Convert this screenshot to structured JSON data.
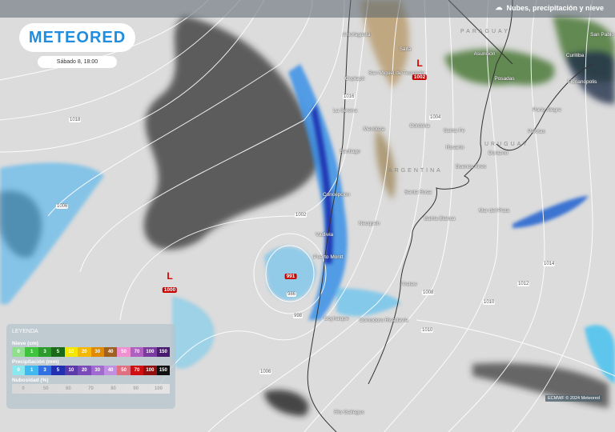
{
  "header": {
    "layer_label": "Nubes, precipitación y nieve",
    "layer_icon": "cloud-icon"
  },
  "brand": {
    "logo_text": "METEORED",
    "date": "Sábado 8, 18:00"
  },
  "countries": [
    "PARAGUAY",
    "URUGUAY",
    "ARGENTINA"
  ],
  "cities": [
    "Antofagasta",
    "Salta",
    "San Miguel de Tucumán",
    "Copiapó",
    "Asunción",
    "Posadas",
    "San Pablo",
    "Curitiba",
    "Florianópolis",
    "La Serena",
    "Córdoba",
    "Santa Fe",
    "Rosario",
    "Porto Alegre",
    "Pelotas",
    "Durazno",
    "Mendoza",
    "Santiago",
    "Buenos Aires",
    "Concepción",
    "Santa Rosa",
    "Neuquén",
    "Bahía Blanca",
    "Mar del Plata",
    "Valdivia",
    "Puerto Montt",
    "Trelew",
    "Coyhaique",
    "Comodoro Rivadavia",
    "Río Gallegos"
  ],
  "lows": [
    {
      "label": "L",
      "pressure": "1002"
    },
    {
      "label": "L",
      "pressure": "1000"
    },
    {
      "label": "",
      "pressure": "991"
    }
  ],
  "isobar_labels": [
    "1018",
    "1016",
    "1006",
    "1004",
    "1002",
    "1008",
    "1010",
    "1012",
    "1014",
    "986",
    "998",
    "1006",
    "1010"
  ],
  "legend": {
    "title": "LEYENDA",
    "snow": {
      "label": "Nieve (cm)",
      "ticks": [
        "0",
        "1",
        "3",
        "5",
        "10",
        "20",
        "30",
        "40",
        "50",
        "70",
        "100",
        "150"
      ],
      "colors": [
        "#8fe08a",
        "#3dc43a",
        "#2a9c2a",
        "#1a6a1a",
        "#f5e600",
        "#f5b800",
        "#e08a00",
        "#a06020",
        "#f090d0",
        "#b060c0",
        "#7a3aa0",
        "#4a1a70"
      ]
    },
    "precipitation": {
      "label": "Precipitación (mm)",
      "ticks": [
        "0",
        "1",
        "3",
        "5",
        "10",
        "20",
        "30",
        "40",
        "50",
        "70",
        "100",
        "150"
      ],
      "colors": [
        "#8ae8f0",
        "#40b8f0",
        "#3070e0",
        "#2030b0",
        "#5a3aa8",
        "#7a4ab8",
        "#a06ad0",
        "#c090e0",
        "#e07080",
        "#d01010",
        "#901010",
        "#101010"
      ]
    },
    "cloudiness": {
      "label": "Nubosidad (%)",
      "ticks": [
        "0",
        "50",
        "60",
        "70",
        "80",
        "90",
        "100"
      ]
    }
  },
  "credit": "ECMWF © 2024 Meteored"
}
